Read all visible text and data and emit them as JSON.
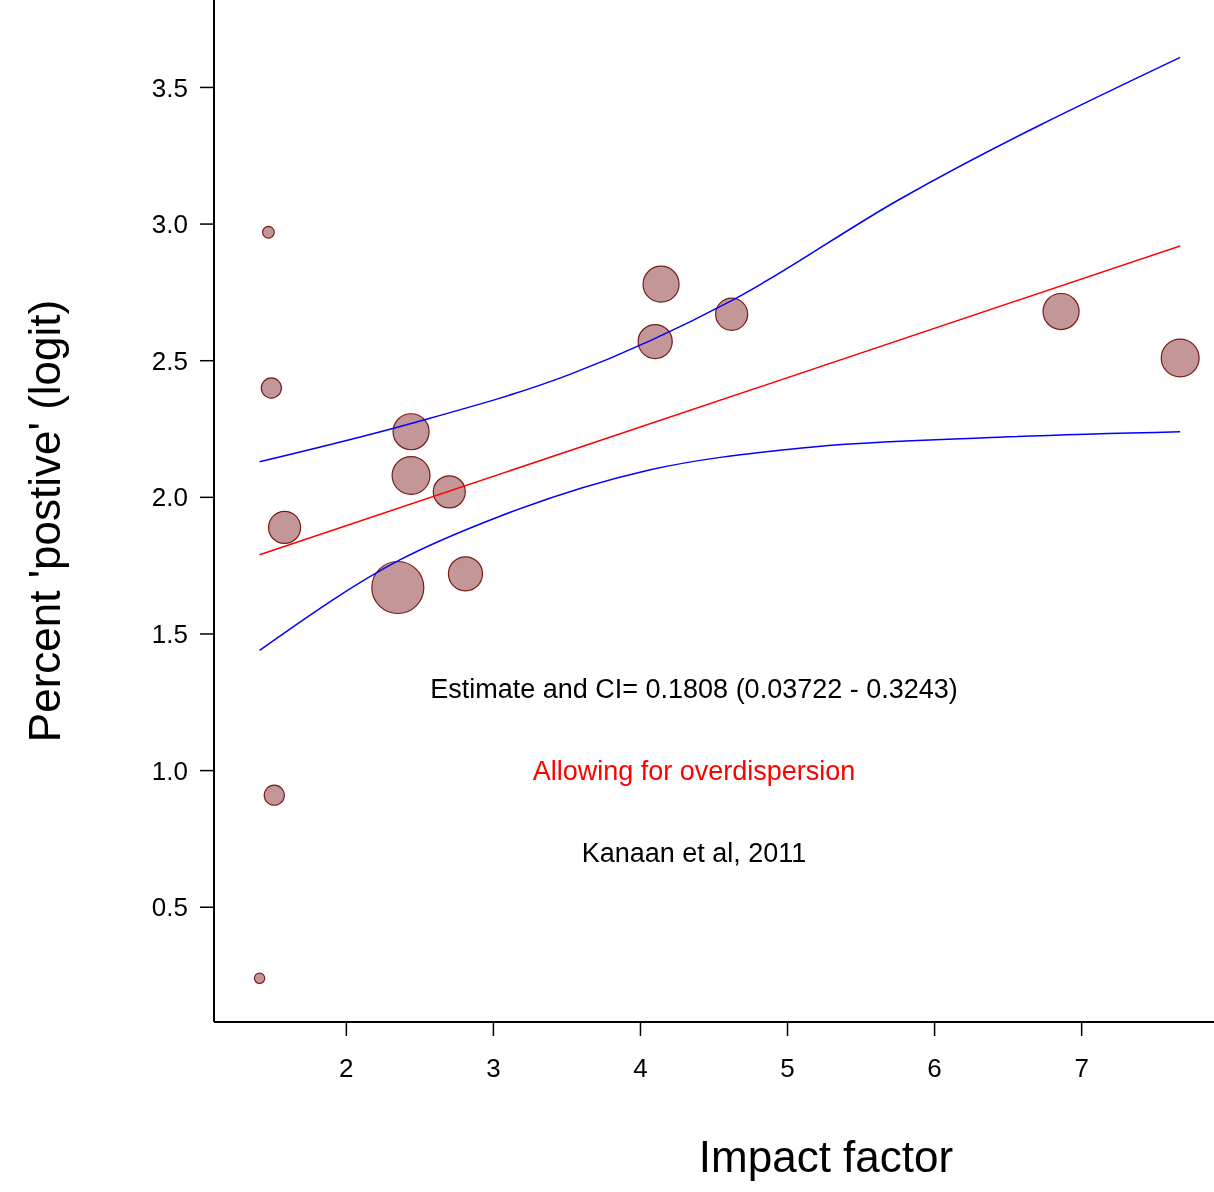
{
  "chart_data": {
    "type": "bubble",
    "xlabel": "Impact factor",
    "ylabel": "Percent 'postive' (logit)",
    "xlim": [
      1.1,
      7.9
    ],
    "xticks": [
      2,
      3,
      4,
      5,
      6,
      7
    ],
    "ylim": [
      0.08,
      3.82
    ],
    "yticks": [
      0.5,
      {
        "value": 1,
        "label": "1.0"
      },
      1.5,
      {
        "value": 2,
        "label": "2.0"
      },
      2.5,
      {
        "value": 3,
        "label": "3.0"
      },
      3.5
    ],
    "grid": false,
    "marker": "circle",
    "series": [
      {
        "color": "#c39797",
        "x": [
          1.47,
          1.49,
          1.58,
          1.51,
          1.41,
          2.44,
          2.44,
          2.35,
          2.7,
          2.81,
          4.1,
          4.14,
          4.62,
          6.86,
          7.67
        ],
        "values": [
          2.97,
          2.4,
          1.89,
          0.91,
          0.24,
          2.24,
          2.08,
          1.67,
          2.02,
          1.72,
          2.57,
          2.78,
          2.67,
          2.68,
          2.51
        ],
        "sizes": [
          0.05,
          0.15,
          0.38,
          0.15,
          0.04,
          0.48,
          0.53,
          1,
          0.38,
          0.43,
          0.43,
          0.48,
          0.38,
          0.48,
          0.53
        ]
      },
      {
        "type": "line",
        "marker": "none",
        "color": "#ff0000",
        "line_style": "solid",
        "x": [
          1.41,
          7.67
        ],
        "values": [
          1.79,
          2.92
        ]
      },
      {
        "type": "line",
        "marker": "none",
        "color": "#0000ff",
        "line_style": "solid",
        "x": [
          1.41,
          2.44,
          3.52,
          4.62,
          5.76,
          7.67
        ],
        "values": [
          2.13,
          2.27,
          2.45,
          2.72,
          3.09,
          3.61
        ]
      },
      {
        "type": "line",
        "marker": "none",
        "color": "#0000ff",
        "line_style": "solid",
        "x": [
          1.41,
          2.36,
          3.04,
          4.06,
          5.08,
          6.44,
          7.67
        ],
        "values": [
          1.44,
          1.77,
          1.93,
          2.1,
          2.18,
          2.22,
          2.24
        ]
      }
    ],
    "annotations": [
      "Estimate and CI=  0.1808 (0.03722 - 0.3243)",
      "Allowing for overdispersion",
      "Kanaan et al, 2011"
    ]
  }
}
